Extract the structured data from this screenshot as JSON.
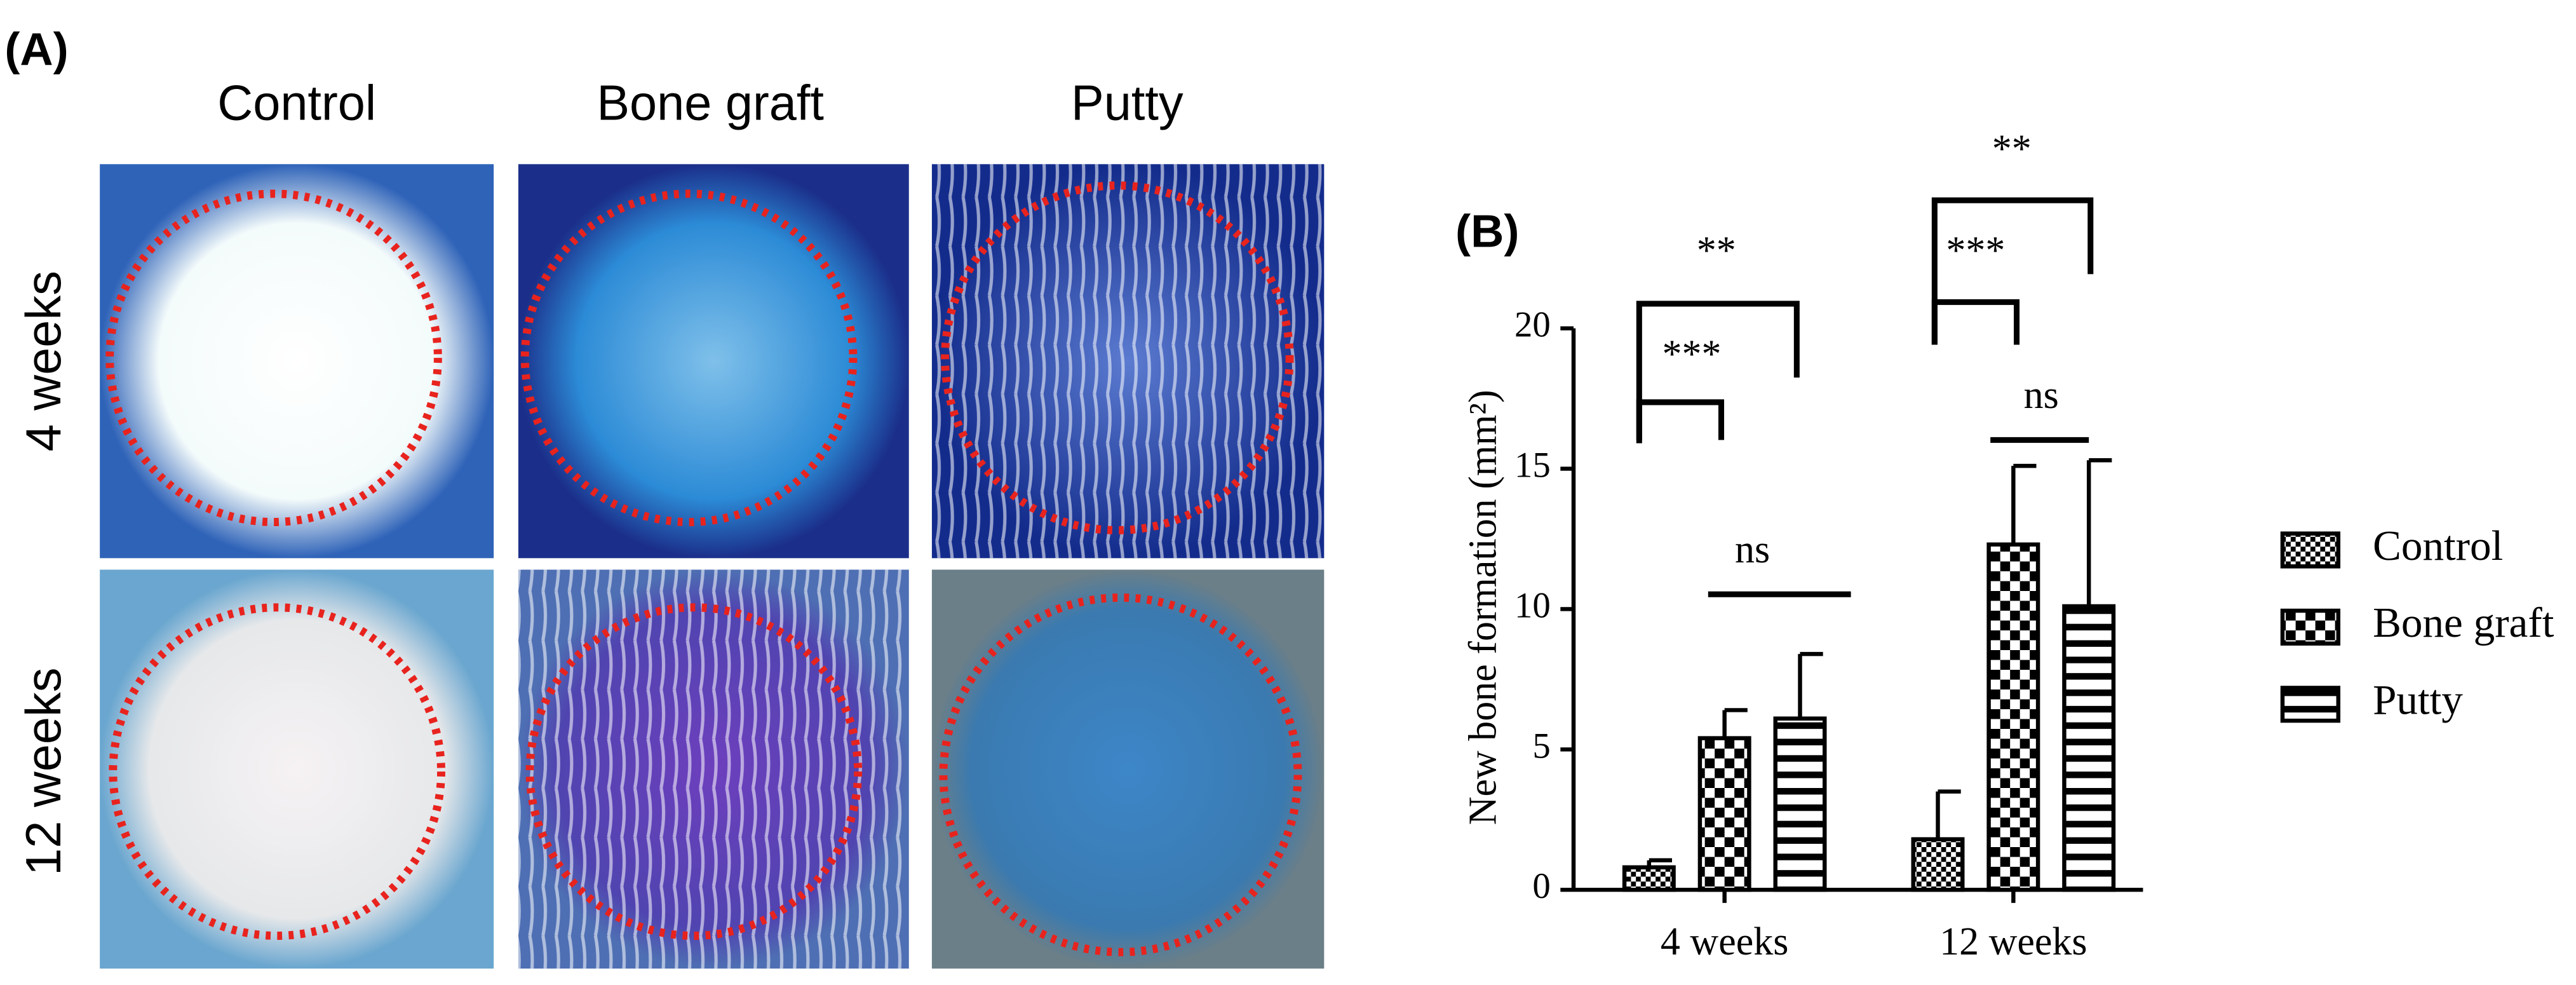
{
  "panel_a": {
    "label": "(A)",
    "columns": [
      "Control",
      "Bone graft",
      "Putty"
    ],
    "rows": [
      "4 weeks",
      "12 weeks"
    ]
  },
  "chart_data": {
    "type": "bar",
    "panel_label": "(B)",
    "ylabel": "New bone formation (mm²)",
    "categories": [
      "4 weeks",
      "12 weeks"
    ],
    "series": [
      {
        "name": "Control",
        "color": "#000000",
        "values": [
          0.8,
          1.8
        ],
        "errors": [
          0.25,
          1.7
        ]
      },
      {
        "name": "Bone graft",
        "color": "#000000",
        "values": [
          5.4,
          12.3
        ],
        "errors": [
          1.0,
          2.8
        ]
      },
      {
        "name": "Putty",
        "color": "#000000",
        "values": [
          6.1,
          10.1
        ],
        "errors": [
          2.3,
          5.2
        ]
      }
    ],
    "ylim": [
      0,
      20
    ],
    "yticks": [
      0,
      5,
      10,
      15,
      20
    ],
    "annotations": [
      "**",
      "***",
      "ns",
      "**",
      "***",
      "ns"
    ]
  }
}
